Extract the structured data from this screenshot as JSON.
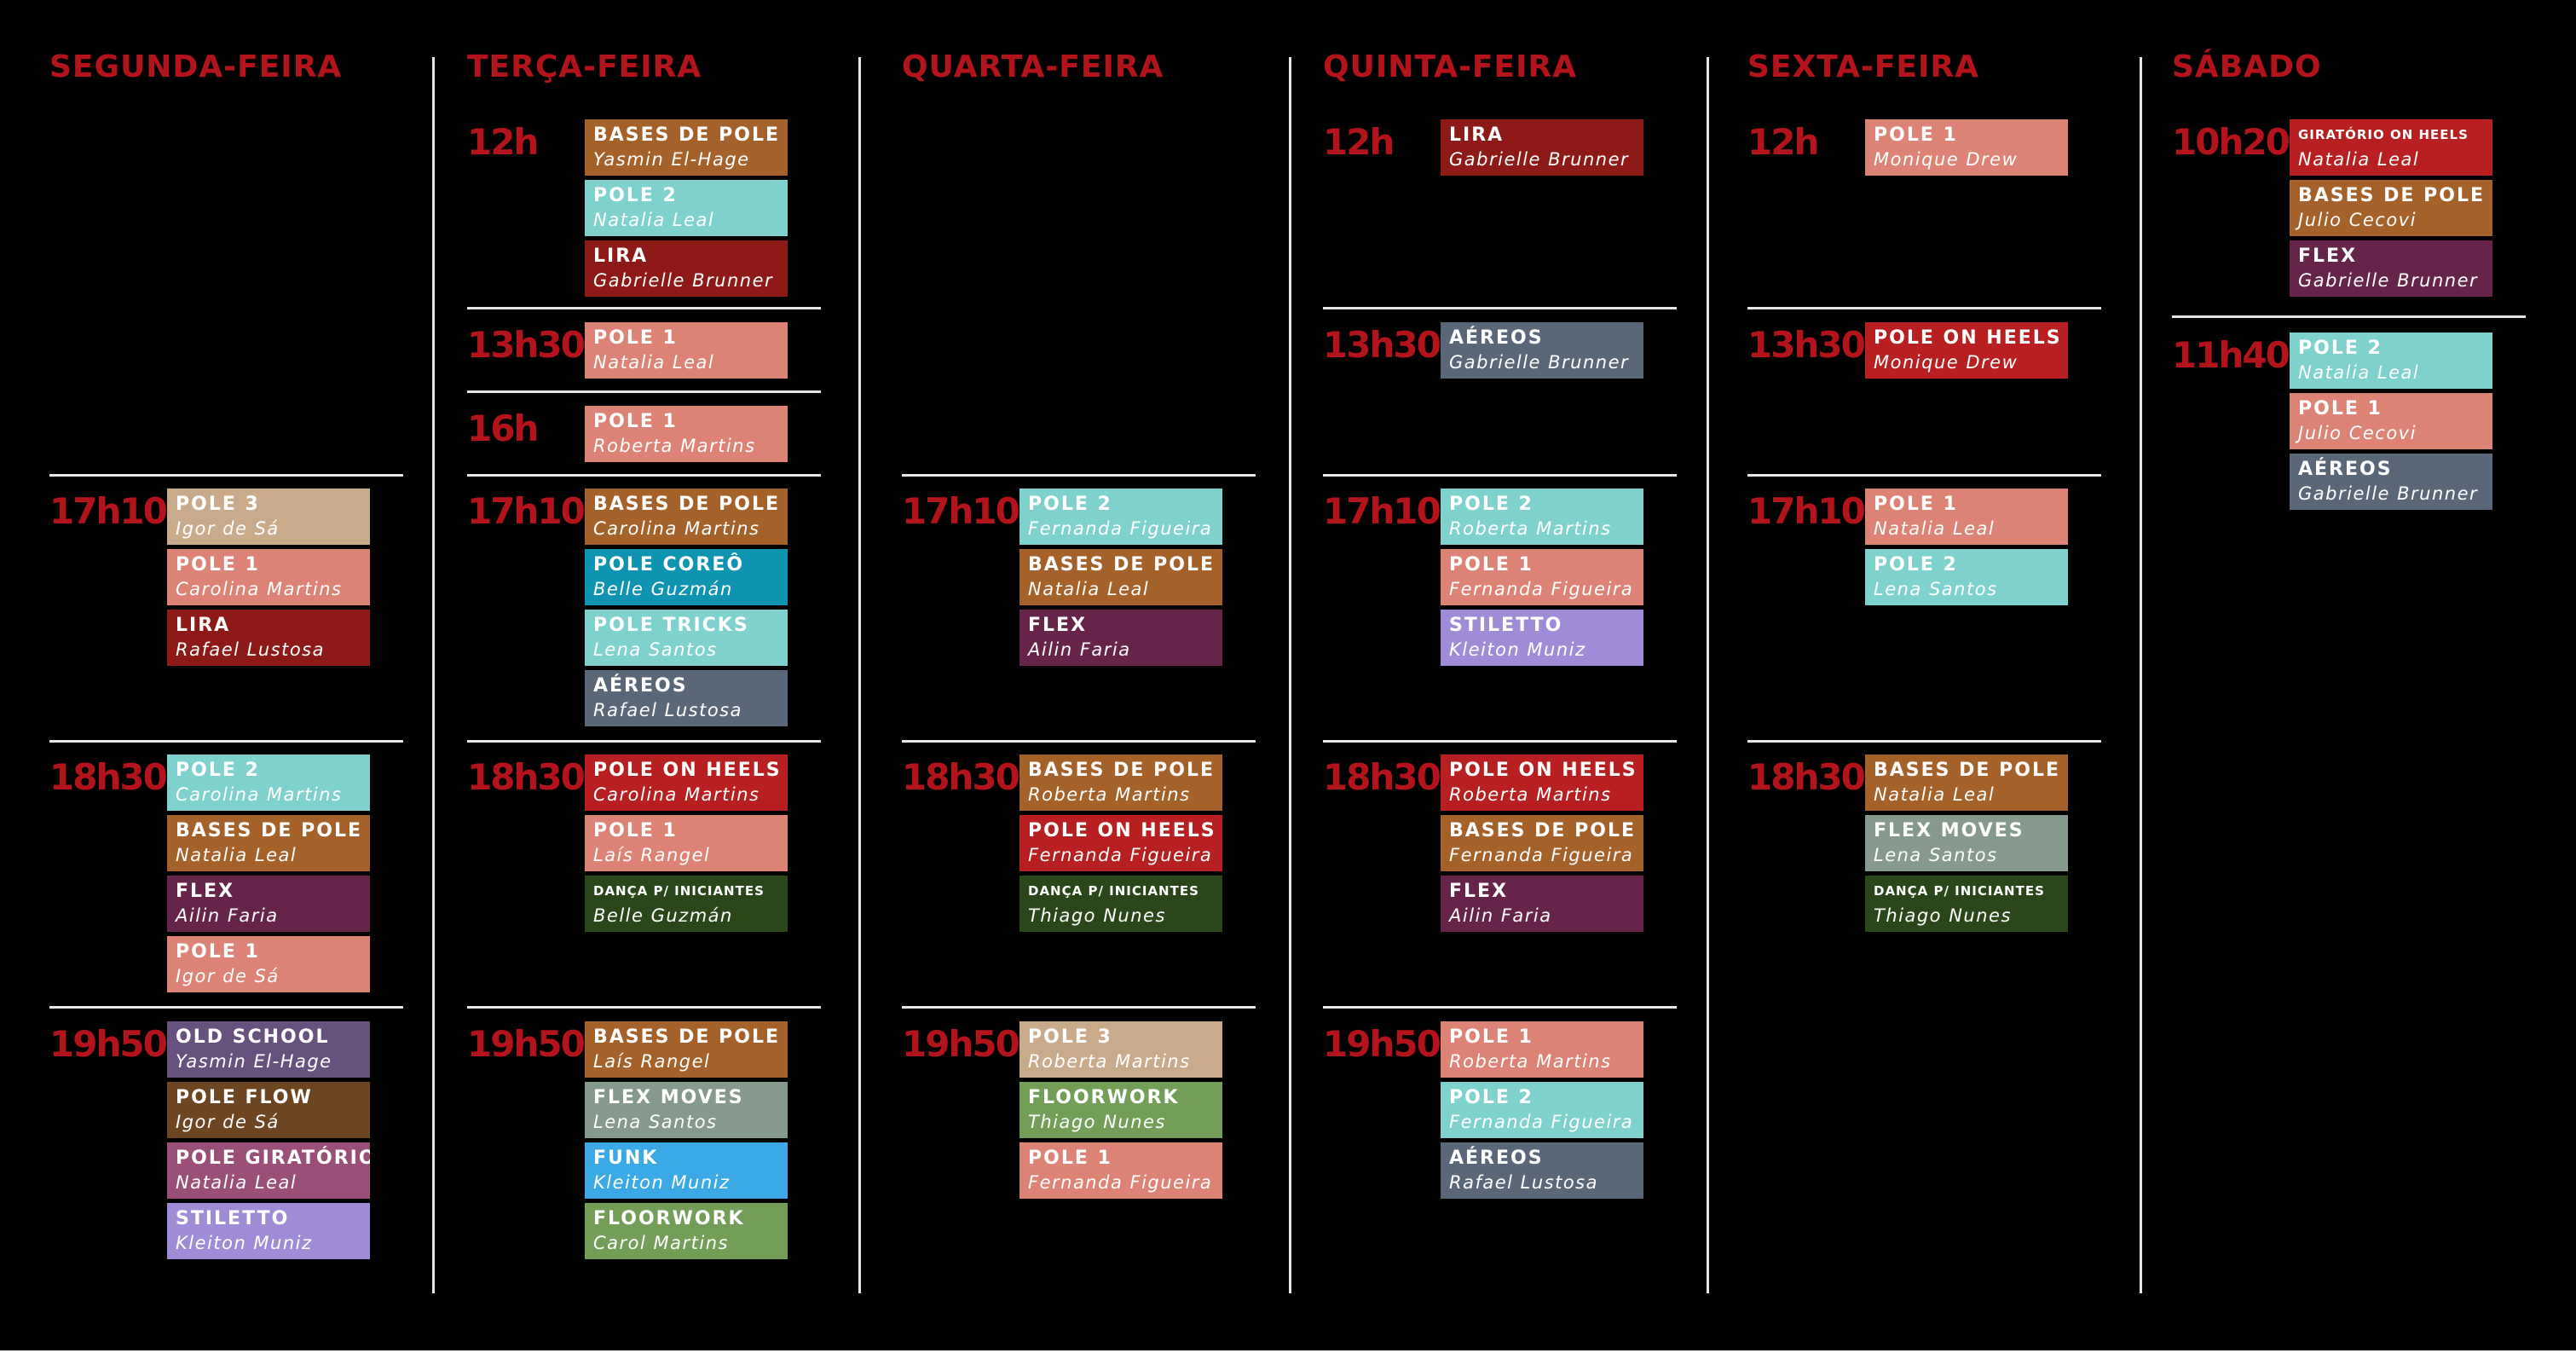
{
  "colors": {
    "background": "#000000",
    "accent_red": "#b3141b",
    "divider": "#e6e6e6"
  },
  "days": [
    {
      "name": "SEGUNDA-FEIRA",
      "slots": [
        {
          "time": "17h10",
          "classes": [
            {
              "name": "POLE 3",
              "teacher": "Igor de Sá",
              "color": "#c9ab8b"
            },
            {
              "name": "POLE 1",
              "teacher": "Carolina Martins",
              "color": "#dc8375"
            },
            {
              "name": "LIRA",
              "teacher": "Rafael Lustosa",
              "color": "#8e1a17"
            }
          ]
        },
        {
          "time": "18h30",
          "classes": [
            {
              "name": "POLE 2",
              "teacher": "Carolina Martins",
              "color": "#7fd1cd"
            },
            {
              "name": "BASES DE POLE",
              "teacher": "Natalia Leal",
              "color": "#a5612a"
            },
            {
              "name": "FLEX",
              "teacher": "Ailin Faria",
              "color": "#66244a"
            },
            {
              "name": "POLE 1",
              "teacher": "Igor de Sá",
              "color": "#dc8375"
            }
          ]
        },
        {
          "time": "19h50",
          "classes": [
            {
              "name": "OLD SCHOOL",
              "teacher": "Yasmin El-Hage",
              "color": "#67517f"
            },
            {
              "name": "POLE FLOW",
              "teacher": "Igor de Sá",
              "color": "#6d4520"
            },
            {
              "name": "POLE GIRATÓRIO",
              "teacher": "Natalia Leal",
              "color": "#9a4f78"
            },
            {
              "name": "STILETTO",
              "teacher": "Kleiton Muniz",
              "color": "#a08bd6"
            }
          ]
        }
      ]
    },
    {
      "name": "TERÇA-FEIRA",
      "slots": [
        {
          "time": "12h",
          "classes": [
            {
              "name": "BASES DE POLE",
              "teacher": "Yasmin El-Hage",
              "color": "#a5612a"
            },
            {
              "name": "POLE 2",
              "teacher": "Natalia Leal",
              "color": "#7fd1cd"
            },
            {
              "name": "LIRA",
              "teacher": "Gabrielle Brunner",
              "color": "#8e1a17"
            }
          ]
        },
        {
          "time": "13h30",
          "classes": [
            {
              "name": "POLE 1",
              "teacher": "Natalia Leal",
              "color": "#dc8375"
            }
          ]
        },
        {
          "time": "16h",
          "classes": [
            {
              "name": "POLE 1",
              "teacher": "Roberta Martins",
              "color": "#dc8375"
            }
          ]
        },
        {
          "time": "17h10",
          "classes": [
            {
              "name": "BASES DE POLE",
              "teacher": "Carolina Martins",
              "color": "#a5612a"
            },
            {
              "name": "POLE COREÔ",
              "teacher": "Belle Guzmán",
              "color": "#0e93b0"
            },
            {
              "name": "POLE TRICKS",
              "teacher": "Lena Santos",
              "color": "#7fd1cd"
            },
            {
              "name": "AÉREOS",
              "teacher": "Rafael Lustosa",
              "color": "#5a6778"
            }
          ]
        },
        {
          "time": "18h30",
          "classes": [
            {
              "name": "POLE ON HEELS",
              "teacher": "Carolina Martins",
              "color": "#b71f20"
            },
            {
              "name": "POLE 1",
              "teacher": "Laís Rangel",
              "color": "#dc8375"
            },
            {
              "name": "DANÇA P/ INICIANTES",
              "teacher": "Belle Guzmán",
              "color": "#2a4719",
              "small": true
            }
          ]
        },
        {
          "time": "19h50",
          "classes": [
            {
              "name": "BASES DE POLE",
              "teacher": "Laís Rangel",
              "color": "#a5612a"
            },
            {
              "name": "FLEX MOVES",
              "teacher": "Lena Santos",
              "color": "#85998d"
            },
            {
              "name": "FUNK",
              "teacher": "Kleiton Muniz",
              "color": "#3aa9e6"
            },
            {
              "name": "FLOORWORK",
              "teacher": "Carol Martins",
              "color": "#729e57"
            }
          ]
        }
      ]
    },
    {
      "name": "QUARTA-FEIRA",
      "slots": [
        {
          "time": "17h10",
          "classes": [
            {
              "name": "POLE 2",
              "teacher": "Fernanda Figueira",
              "color": "#7fd1cd"
            },
            {
              "name": "BASES DE POLE",
              "teacher": "Natalia Leal",
              "color": "#a5612a"
            },
            {
              "name": "FLEX",
              "teacher": "Ailin Faria",
              "color": "#66244a"
            }
          ]
        },
        {
          "time": "18h30",
          "classes": [
            {
              "name": "BASES DE POLE",
              "teacher": "Roberta Martins",
              "color": "#a5612a"
            },
            {
              "name": "POLE ON HEELS",
              "teacher": "Fernanda Figueira",
              "color": "#b71f20"
            },
            {
              "name": "DANÇA P/ INICIANTES",
              "teacher": "Thiago Nunes",
              "color": "#2a4719",
              "small": true
            }
          ]
        },
        {
          "time": "19h50",
          "classes": [
            {
              "name": "POLE 3",
              "teacher": "Roberta Martins",
              "color": "#c9ab8b"
            },
            {
              "name": "FLOORWORK",
              "teacher": "Thiago Nunes",
              "color": "#729e57"
            },
            {
              "name": "POLE 1",
              "teacher": "Fernanda Figueira",
              "color": "#dc8375"
            }
          ]
        }
      ]
    },
    {
      "name": "QUINTA-FEIRA",
      "slots": [
        {
          "time": "12h",
          "classes": [
            {
              "name": "LIRA",
              "teacher": "Gabrielle Brunner",
              "color": "#8e1a17"
            }
          ]
        },
        {
          "time": "13h30",
          "classes": [
            {
              "name": "AÉREOS",
              "teacher": "Gabrielle Brunner",
              "color": "#5a6778"
            }
          ]
        },
        {
          "time": "17h10",
          "classes": [
            {
              "name": "POLE 2",
              "teacher": "Roberta Martins",
              "color": "#7fd1cd"
            },
            {
              "name": "POLE 1",
              "teacher": "Fernanda Figueira",
              "color": "#dc8375"
            },
            {
              "name": "STILETTO",
              "teacher": "Kleiton Muniz",
              "color": "#a08bd6"
            }
          ]
        },
        {
          "time": "18h30",
          "classes": [
            {
              "name": "POLE ON HEELS",
              "teacher": "Roberta Martins",
              "color": "#b71f20"
            },
            {
              "name": "BASES DE POLE",
              "teacher": "Fernanda Figueira",
              "color": "#a5612a"
            },
            {
              "name": "FLEX",
              "teacher": "Ailin Faria",
              "color": "#66244a"
            }
          ]
        },
        {
          "time": "19h50",
          "classes": [
            {
              "name": "POLE 1",
              "teacher": "Roberta Martins",
              "color": "#dc8375"
            },
            {
              "name": "POLE 2",
              "teacher": "Fernanda Figueira",
              "color": "#7fd1cd"
            },
            {
              "name": "AÉREOS",
              "teacher": "Rafael Lustosa",
              "color": "#5a6778"
            }
          ]
        }
      ]
    },
    {
      "name": "SEXTA-FEIRA",
      "slots": [
        {
          "time": "12h",
          "classes": [
            {
              "name": "POLE 1",
              "teacher": "Monique Drew",
              "color": "#dc8375"
            }
          ]
        },
        {
          "time": "13h30",
          "classes": [
            {
              "name": "POLE ON HEELS",
              "teacher": "Monique Drew",
              "color": "#b71f20"
            }
          ]
        },
        {
          "time": "17h10",
          "classes": [
            {
              "name": "POLE 1",
              "teacher": "Natalia Leal",
              "color": "#dc8375"
            },
            {
              "name": "POLE 2",
              "teacher": "Lena Santos",
              "color": "#7fd1cd"
            }
          ]
        },
        {
          "time": "18h30",
          "classes": [
            {
              "name": "BASES DE POLE",
              "teacher": "Natalia Leal",
              "color": "#a5612a"
            },
            {
              "name": "FLEX MOVES",
              "teacher": "Lena Santos",
              "color": "#85998d"
            },
            {
              "name": "DANÇA P/ INICIANTES",
              "teacher": "Thiago Nunes",
              "color": "#2a4719",
              "small": true
            }
          ]
        }
      ]
    },
    {
      "name": "SÁBADO",
      "slots": [
        {
          "time": "10h20",
          "classes": [
            {
              "name": "GIRATÓRIO ON HEELS",
              "teacher": "Natalia Leal",
              "color": "#b71f20",
              "small": true
            },
            {
              "name": "BASES DE POLE",
              "teacher": "Julio Cecovi",
              "color": "#a5612a"
            },
            {
              "name": "FLEX",
              "teacher": "Gabrielle Brunner",
              "color": "#66244a"
            }
          ]
        },
        {
          "time": "11h40",
          "classes": [
            {
              "name": "POLE 2",
              "teacher": "Natalia Leal",
              "color": "#7fd1cd"
            },
            {
              "name": "POLE 1",
              "teacher": "Julio Cecovi",
              "color": "#dc8375"
            },
            {
              "name": "AÉREOS",
              "teacher": "Gabrielle Brunner",
              "color": "#5a6778"
            }
          ]
        }
      ]
    }
  ]
}
